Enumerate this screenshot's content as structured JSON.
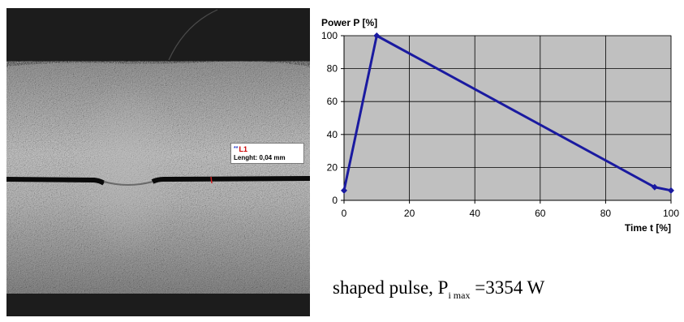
{
  "micrograph": {
    "label_id": "L1",
    "label_marker": "**",
    "length_text": "Lenght: 0,04 mm"
  },
  "caption": {
    "prefix": "shaped pulse, P",
    "subscript": "i max",
    "suffix": " =3354 W"
  },
  "chart_data": {
    "type": "line",
    "ylabel": "Power P [%]",
    "xlabel": "Time t [%]",
    "xlim": [
      0,
      100
    ],
    "ylim": [
      0,
      100
    ],
    "xticks": [
      0,
      20,
      40,
      60,
      80,
      100
    ],
    "yticks": [
      0,
      20,
      40,
      60,
      80,
      100
    ],
    "grid": true,
    "series": [
      {
        "x": [
          0,
          10,
          95,
          100
        ],
        "values": [
          6,
          100,
          8,
          6
        ],
        "color": "#1a1aa0"
      }
    ],
    "plot_background": "#c0c0c0"
  }
}
